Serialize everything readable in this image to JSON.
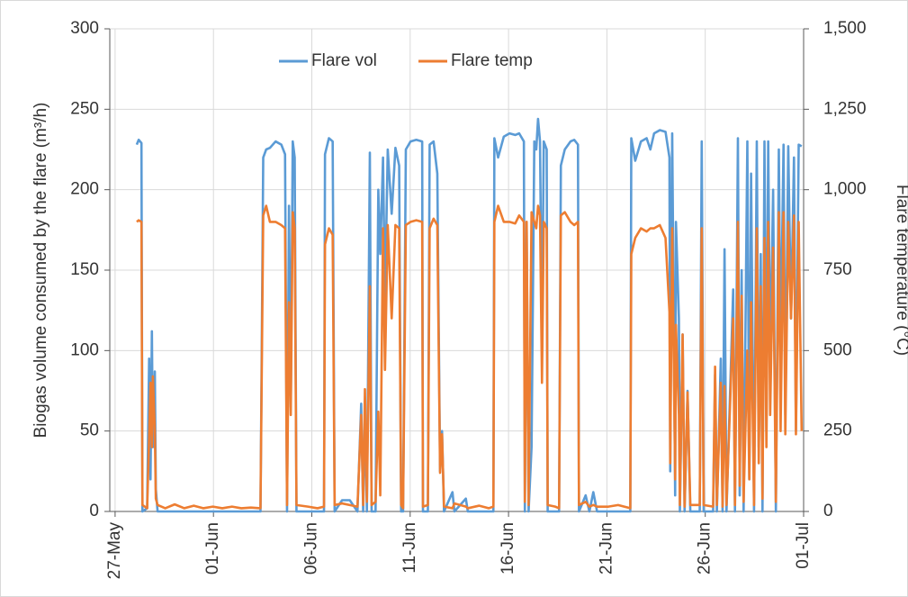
{
  "chart_data": {
    "type": "line",
    "y_label": "Biogas volume consumed by the flare (m³/h)",
    "y2_label": "Flare temperature (°C)",
    "x": [
      1.1,
      1.2,
      1.34,
      1.39,
      1.63,
      1.73,
      1.8,
      1.87,
      1.92,
      2.02,
      2.07,
      2.16,
      2.55,
      3.03,
      3.52,
      4.0,
      4.48,
      4.97,
      5.45,
      5.94,
      6.42,
      6.9,
      7.39,
      7.53,
      7.68,
      7.87,
      8.16,
      8.45,
      8.64,
      8.74,
      8.84,
      8.93,
      9.03,
      9.13,
      9.22,
      9.8,
      10.29,
      10.62,
      10.67,
      10.87,
      11.06,
      11.16,
      11.54,
      11.93,
      12.32,
      12.51,
      12.61,
      12.7,
      12.8,
      12.95,
      13.04,
      13.24,
      13.38,
      13.48,
      13.62,
      13.72,
      13.86,
      14.06,
      14.25,
      14.44,
      14.54,
      14.64,
      14.78,
      15.02,
      15.31,
      15.61,
      15.65,
      15.9,
      15.99,
      16.19,
      16.38,
      16.52,
      16.62,
      16.72,
      17.15,
      17.25,
      17.83,
      17.93,
      18.51,
      18.99,
      19.23,
      19.28,
      19.47,
      19.76,
      20.05,
      20.34,
      20.54,
      20.78,
      20.83,
      20.92,
      21.02,
      21.17,
      21.31,
      21.41,
      21.5,
      21.6,
      21.7,
      21.79,
      21.94,
      21.99,
      22.37,
      22.57,
      22.66,
      22.86,
      23.15,
      23.34,
      23.53,
      23.58,
      23.92,
      24.11,
      24.31,
      24.5,
      25.08,
      25.57,
      26.19,
      26.24,
      26.44,
      26.73,
      27.02,
      27.21,
      27.4,
      27.69,
      27.98,
      28.18,
      28.22,
      28.32,
      28.47,
      28.51,
      28.66,
      28.71,
      28.85,
      28.95,
      29.1,
      29.24,
      29.72,
      29.82,
      29.92,
      30.4,
      30.5,
      30.59,
      30.79,
      30.88,
      30.98,
      31.08,
      31.42,
      31.51,
      31.66,
      31.75,
      31.85,
      31.95,
      32.14,
      32.24,
      32.33,
      32.48,
      32.62,
      32.72,
      32.82,
      32.91,
      33.01,
      33.11,
      33.2,
      33.3,
      33.45,
      33.59,
      33.74,
      33.83,
      33.98,
      34.07,
      34.22,
      34.36,
      34.51,
      34.61,
      34.75,
      34.9
    ],
    "series": [
      {
        "name": "Flare vol",
        "color": "#5b9bd5",
        "values": [
          228,
          231,
          229,
          0,
          2,
          95,
          20,
          112,
          40,
          87,
          14,
          0,
          0,
          0,
          0,
          0,
          0,
          0,
          0,
          0,
          0,
          0,
          0,
          220,
          225,
          226,
          230,
          228,
          222,
          0,
          190,
          65,
          230,
          220,
          0,
          0,
          0,
          0,
          222,
          232,
          230,
          0,
          7,
          7,
          0,
          67,
          0,
          60,
          0,
          223,
          0,
          0,
          200,
          160,
          220,
          130,
          225,
          185,
          226,
          215,
          0,
          0,
          225,
          230,
          231,
          230,
          0,
          0,
          228,
          230,
          210,
          25,
          50,
          0,
          12,
          0,
          8,
          0,
          0,
          0,
          0,
          232,
          220,
          233,
          235,
          234,
          235,
          230,
          0,
          180,
          0,
          40,
          230,
          225,
          244,
          230,
          100,
          230,
          225,
          0,
          0,
          0,
          215,
          225,
          230,
          231,
          228,
          0,
          10,
          0,
          12,
          0,
          0,
          0,
          0,
          232,
          218,
          230,
          232,
          225,
          235,
          237,
          236,
          220,
          25,
          235,
          10,
          180,
          120,
          0,
          110,
          0,
          75,
          0,
          0,
          230,
          0,
          0,
          85,
          0,
          95,
          0,
          163,
          0,
          138,
          0,
          232,
          10,
          150,
          0,
          230,
          20,
          210,
          0,
          230,
          40,
          160,
          0,
          230,
          50,
          230,
          90,
          200,
          0,
          225,
          100,
          228,
          60,
          227,
          120,
          220,
          50,
          228,
          227
        ]
      },
      {
        "name": "Flare temp",
        "color": "#ed7d31",
        "axis": "y2",
        "values": [
          900,
          905,
          900,
          20,
          10,
          230,
          400,
          200,
          420,
          250,
          40,
          20,
          10,
          22,
          10,
          18,
          10,
          15,
          10,
          15,
          10,
          12,
          10,
          920,
          950,
          900,
          900,
          890,
          880,
          20,
          650,
          300,
          930,
          880,
          20,
          15,
          10,
          15,
          830,
          880,
          860,
          20,
          25,
          20,
          15,
          300,
          20,
          380,
          30,
          700,
          20,
          30,
          310,
          50,
          880,
          440,
          890,
          600,
          890,
          880,
          20,
          10,
          890,
          900,
          905,
          900,
          15,
          20,
          880,
          910,
          890,
          120,
          240,
          15,
          10,
          25,
          15,
          10,
          18,
          10,
          15,
          900,
          950,
          900,
          900,
          895,
          920,
          900,
          30,
          900,
          20,
          930,
          900,
          880,
          950,
          920,
          400,
          900,
          880,
          20,
          15,
          10,
          920,
          930,
          900,
          890,
          900,
          20,
          30,
          15,
          20,
          15,
          15,
          20,
          10,
          800,
          850,
          880,
          870,
          880,
          880,
          890,
          850,
          620,
          150,
          880,
          100,
          580,
          300,
          20,
          550,
          15,
          370,
          20,
          20,
          880,
          20,
          15,
          450,
          20,
          400,
          15,
          390,
          20,
          600,
          20,
          900,
          80,
          670,
          30,
          500,
          100,
          650,
          20,
          880,
          150,
          700,
          40,
          850,
          200,
          900,
          300,
          820,
          30,
          930,
          250,
          930,
          240,
          900,
          600,
          920,
          240,
          900,
          250
        ]
      }
    ],
    "xlim": [
      -0.27,
      35
    ],
    "xticks": [
      {
        "value": 0,
        "label": "27-May"
      },
      {
        "value": 5,
        "label": "01-Jun"
      },
      {
        "value": 10,
        "label": "06-Jun"
      },
      {
        "value": 15,
        "label": "11-Jun"
      },
      {
        "value": 20,
        "label": "16-Jun"
      },
      {
        "value": 25,
        "label": "21-Jun"
      },
      {
        "value": 30,
        "label": "26-Jun"
      },
      {
        "value": 35,
        "label": "01-Jul"
      }
    ],
    "ylim": [
      0,
      300
    ],
    "yticks": [
      0,
      50,
      100,
      150,
      200,
      250,
      300
    ],
    "y2lim": [
      0,
      1500
    ],
    "y2ticks": [
      0,
      250,
      500,
      750,
      {
        "value": 1000,
        "label": "1,000"
      },
      {
        "value": 1250,
        "label": "1,250"
      },
      {
        "value": 1500,
        "label": "1,500"
      }
    ],
    "grid": true,
    "legend": "top"
  }
}
